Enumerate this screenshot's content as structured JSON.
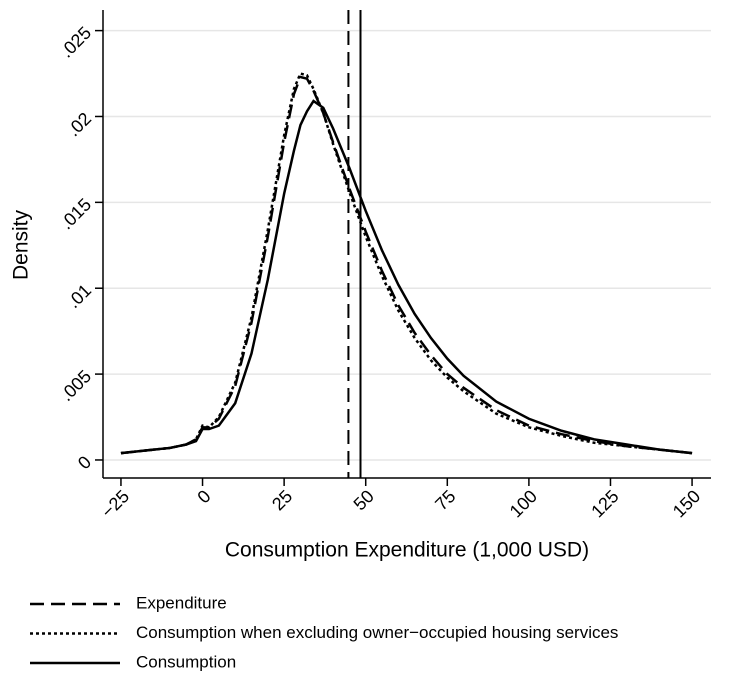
{
  "chart_data": {
    "type": "line",
    "ylabel": "Density",
    "xlabel": "Consumption Expenditure (1,000 USD)",
    "xlim": [
      -30.5,
      155.8
    ],
    "ylim": [
      -0.00105,
      0.0262
    ],
    "xticks": [
      {
        "value": -25,
        "label": "−25"
      },
      0,
      25,
      50,
      75,
      100,
      125,
      150
    ],
    "yticks": [
      0,
      {
        "value": 0.005,
        "label": ".005"
      },
      {
        "value": 0.01,
        "label": ".01"
      },
      {
        "value": 0.015,
        "label": ".015"
      },
      {
        "value": 0.02,
        "label": ".02"
      },
      {
        "value": 0.025,
        "label": ".025"
      }
    ],
    "grid": true,
    "x": [
      -25,
      -20,
      -15,
      -10,
      -5,
      -2,
      0,
      2,
      5,
      10,
      15,
      20,
      25,
      28,
      30,
      32,
      34,
      37,
      40,
      45,
      50,
      55,
      60,
      65,
      70,
      75,
      80,
      90,
      100,
      110,
      120,
      130,
      140,
      150
    ],
    "series": [
      {
        "name": "Expenditure",
        "color": "#000000",
        "dash": "dashed",
        "mean": 44.7,
        "values": [
          0.0004,
          0.0005,
          0.0006,
          0.0007,
          0.0009,
          0.0012,
          0.0019,
          0.0019,
          0.0024,
          0.0043,
          0.008,
          0.013,
          0.0185,
          0.0213,
          0.0223,
          0.0222,
          0.0215,
          0.0202,
          0.0185,
          0.0158,
          0.0133,
          0.011,
          0.009,
          0.0074,
          0.0061,
          0.005,
          0.0042,
          0.0029,
          0.002,
          0.0015,
          0.0011,
          0.0008,
          0.0006,
          0.0004
        ]
      },
      {
        "name": "Consumption when excluding owner−occupied housing services",
        "color": "#000000",
        "dash": "dotted",
        "values": [
          0.0004,
          0.0005,
          0.0006,
          0.0007,
          0.0009,
          0.0012,
          0.002,
          0.0019,
          0.0025,
          0.0045,
          0.0083,
          0.0134,
          0.0189,
          0.0216,
          0.0225,
          0.0224,
          0.0216,
          0.0202,
          0.0184,
          0.0156,
          0.013,
          0.0107,
          0.0087,
          0.0071,
          0.0058,
          0.0048,
          0.004,
          0.0027,
          0.0019,
          0.0014,
          0.001,
          0.0008,
          0.0006,
          0.0004
        ]
      },
      {
        "name": "Consumption",
        "color": "#000000",
        "dash": "solid",
        "mean": 48.4,
        "values": [
          0.0004,
          0.0005,
          0.0006,
          0.0007,
          0.0009,
          0.0011,
          0.0018,
          0.0018,
          0.002,
          0.0033,
          0.0062,
          0.0105,
          0.0155,
          0.018,
          0.0195,
          0.0203,
          0.0209,
          0.0205,
          0.0193,
          0.017,
          0.0145,
          0.0122,
          0.0102,
          0.0085,
          0.0071,
          0.0059,
          0.0049,
          0.0034,
          0.0024,
          0.0017,
          0.0012,
          0.0009,
          0.0006,
          0.0004
        ]
      }
    ]
  }
}
